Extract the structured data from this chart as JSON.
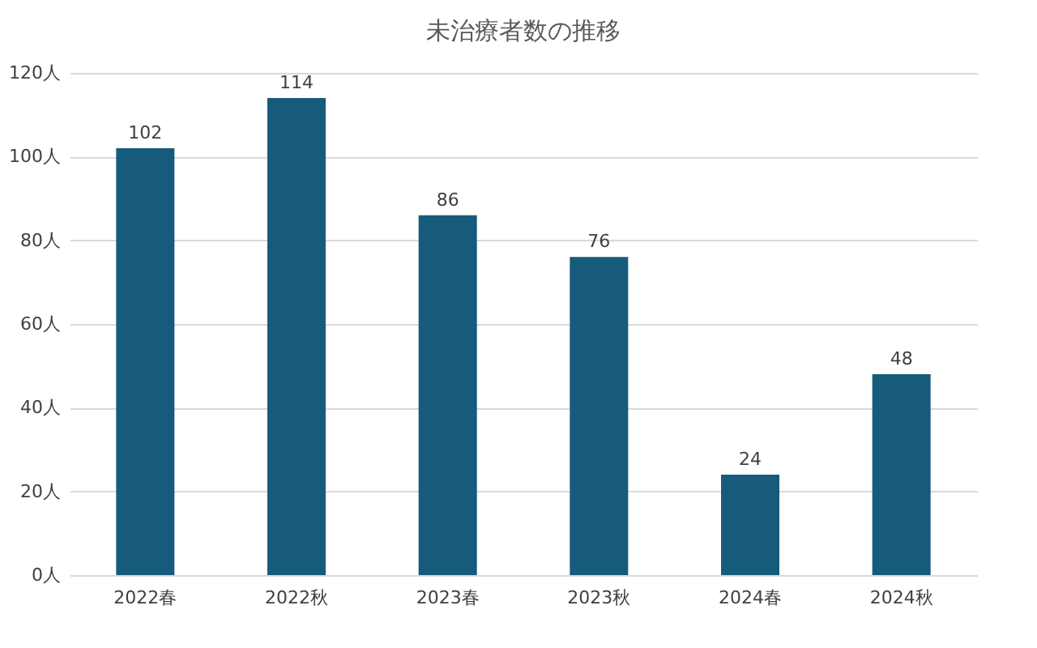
{
  "chart_data": {
    "type": "bar",
    "title": "未治療者数の推移",
    "categories": [
      "2022春",
      "2022秋",
      "2023春",
      "2023秋",
      "2024春",
      "2024秋"
    ],
    "values": [
      102,
      114,
      86,
      76,
      24,
      48
    ],
    "color": "#165b7b",
    "ylim": [
      0,
      120
    ],
    "yticks": [
      {
        "value": 0,
        "label": "0人"
      },
      {
        "value": 20,
        "label": "20人"
      },
      {
        "value": 40,
        "label": "40人"
      },
      {
        "value": 60,
        "label": "60人"
      },
      {
        "value": 80,
        "label": "80人"
      },
      {
        "value": 100,
        "label": "100人"
      },
      {
        "value": 120,
        "label": "120人"
      }
    ],
    "grid": "y",
    "data_labels": true
  }
}
